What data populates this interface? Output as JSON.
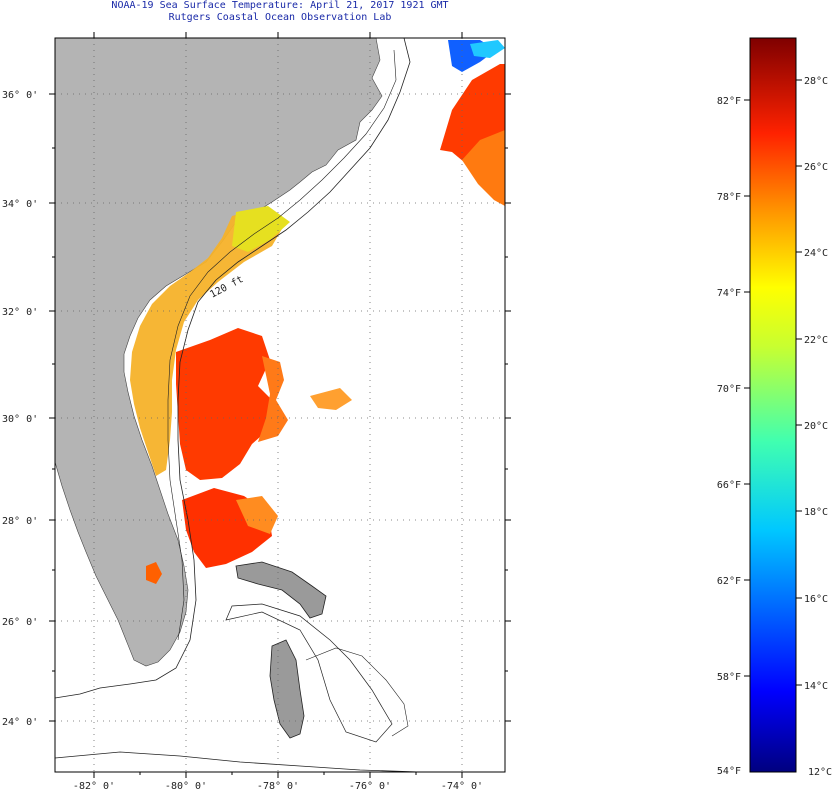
{
  "header": {
    "title_line1": "NOAA-19 Sea Surface Temperature:  April 21, 2017 1921 GMT",
    "title_line2": "Rutgers Coastal Ocean Observation Lab"
  },
  "map": {
    "latitude_labels": [
      "36° 0'",
      "34° 0'",
      "32° 0'",
      "30° 0'",
      "28° 0'",
      "26° 0'",
      "24° 0'"
    ],
    "longitude_labels": [
      "-82° 0'",
      "-80° 0'",
      "-78° 0'",
      "-76° 0'",
      "-74° 0'"
    ],
    "contour_label": "120 ft",
    "land_color": "#b4b4b4",
    "no_data_color": "#ffffff"
  },
  "colorbar": {
    "fahrenheit_labels": [
      "82°F",
      "78°F",
      "74°F",
      "70°F",
      "66°F",
      "62°F",
      "58°F",
      "54°F"
    ],
    "celsius_labels": [
      "28°C",
      "26°C",
      "24°C",
      "22°C",
      "20°C",
      "18°C",
      "16°C",
      "14°C",
      "12°C"
    ],
    "colors": [
      "#00007f",
      "#0000ff",
      "#007fff",
      "#00ffff",
      "#7fff7f",
      "#ffff00",
      "#ff7f00",
      "#ff0000",
      "#7f0000"
    ]
  }
}
